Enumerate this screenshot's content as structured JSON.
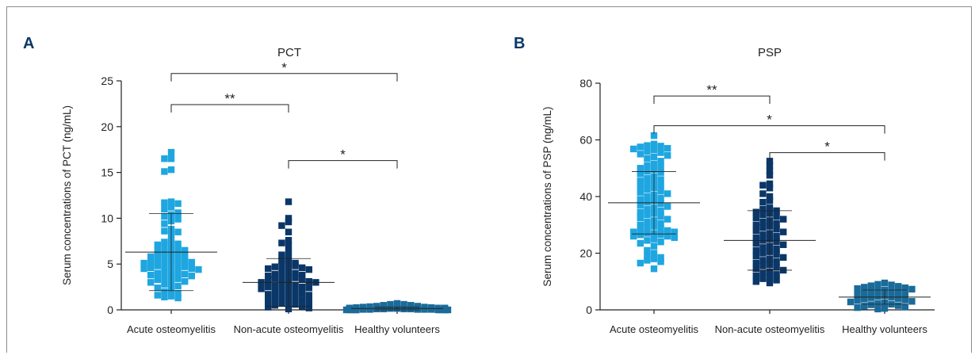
{
  "chart_data": [
    {
      "panel": "A",
      "type": "scatter",
      "title": "PCT",
      "ylabel": "Serum concentrations of PCT (ng/mL)",
      "xlabel": "",
      "ylim": [
        0,
        25
      ],
      "yticks": [
        0,
        5,
        10,
        15,
        20,
        25
      ],
      "categories": [
        "Acute osteomyelitis",
        "Non-acute osteomyelitis",
        "Healthy volunteers"
      ],
      "series": [
        {
          "category": "Acute osteomyelitis",
          "color": "#1fa6e0",
          "mean": 6.3,
          "sd": 4.2,
          "values": [
            17.2,
            16.5,
            16.5,
            15.1,
            15.3,
            11.8,
            11.7,
            11.6,
            11.2,
            11.0,
            10.6,
            10.4,
            10.2,
            9.9,
            9.7,
            9.4,
            8.8,
            8.6,
            8.5,
            8.2,
            7.6,
            7.4,
            7.2,
            7.0,
            7.1,
            6.9,
            6.6,
            6.5,
            6.5,
            6.3,
            6.2,
            6.1,
            6.0,
            5.9,
            5.8,
            5.7,
            5.6,
            5.5,
            5.4,
            5.3,
            5.2,
            5.2,
            5.1,
            5.0,
            4.9,
            4.8,
            4.8,
            4.7,
            4.6,
            4.5,
            4.5,
            4.4,
            4.3,
            4.2,
            4.1,
            4.0,
            3.9,
            3.8,
            3.7,
            3.6,
            3.5,
            3.4,
            3.3,
            3.1,
            3.0,
            2.9,
            2.8,
            2.6,
            2.4,
            2.2,
            2.0,
            1.8,
            1.6,
            1.5,
            1.4,
            1.3
          ]
        },
        {
          "category": "Non-acute osteomyelitis",
          "color": "#0b3768",
          "mean": 3.0,
          "sd": 2.6,
          "values": [
            11.8,
            10.0,
            9.6,
            9.2,
            8.5,
            7.6,
            7.3,
            7.0,
            6.3,
            6.0,
            5.6,
            5.4,
            5.1,
            5.0,
            4.9,
            4.8,
            4.7,
            4.6,
            4.5,
            4.4,
            4.3,
            4.2,
            4.0,
            3.9,
            3.8,
            3.7,
            3.6,
            3.5,
            3.5,
            3.4,
            3.3,
            3.2,
            3.1,
            3.0,
            3.0,
            2.9,
            2.8,
            2.7,
            2.6,
            2.5,
            2.5,
            2.4,
            2.3,
            2.2,
            2.1,
            2.0,
            1.9,
            1.8,
            1.7,
            1.6,
            1.5,
            1.4,
            1.3,
            1.2,
            1.1,
            1.0,
            0.9,
            0.8,
            0.7,
            0.6,
            0.5,
            0.4,
            0.3,
            0.2,
            0.1
          ]
        },
        {
          "category": "Healthy volunteers",
          "color": "#1a6b9a",
          "mean": 0.15,
          "sd": 0.15,
          "values": [
            0.7,
            0.6,
            0.6,
            0.5,
            0.5,
            0.4,
            0.4,
            0.35,
            0.3,
            0.3,
            0.25,
            0.25,
            0.2,
            0.2,
            0.2,
            0.15,
            0.15,
            0.1,
            0.1,
            0.1,
            0.1,
            0.05,
            0.05,
            0.05,
            0.05,
            0.05,
            0.0,
            0.0,
            0.0,
            0.0,
            0.0,
            0.0,
            0.0,
            0.0,
            0.0,
            0.0
          ]
        }
      ],
      "significance": [
        {
          "from": 0,
          "to": 2,
          "y": 25.8,
          "label": "*"
        },
        {
          "from": 0,
          "to": 1,
          "y": 22.4,
          "label": "**"
        },
        {
          "from": 1,
          "to": 2,
          "y": 16.3,
          "label": "*"
        }
      ]
    },
    {
      "panel": "B",
      "type": "scatter",
      "title": "PSP",
      "ylabel": "Serum concentrations of PSP (ng/mL)",
      "xlabel": "",
      "ylim": [
        0,
        80
      ],
      "yticks": [
        0,
        20,
        40,
        60,
        80
      ],
      "categories": [
        "Acute osteomyelitis",
        "Non-acute osteomyelitis",
        "Healthy volunteers"
      ],
      "series": [
        {
          "category": "Acute osteomyelitis",
          "color": "#1fa6e0",
          "mean": 37.8,
          "sd": 11.0,
          "values": [
            61.5,
            58.5,
            58.0,
            57.8,
            57.5,
            57.0,
            56.8,
            56.5,
            56.0,
            55.5,
            55.0,
            54.5,
            54.0,
            53.5,
            52.5,
            51.5,
            51.0,
            50.5,
            50.0,
            49.5,
            49.0,
            48.5,
            48.0,
            47.0,
            46.5,
            46.0,
            45.5,
            45.0,
            44.5,
            44.0,
            43.5,
            43.0,
            42.5,
            42.0,
            41.5,
            41.0,
            40.5,
            40.0,
            39.5,
            39.0,
            38.5,
            38.0,
            37.5,
            37.0,
            36.5,
            36.0,
            35.5,
            35.0,
            34.5,
            34.0,
            33.5,
            33.0,
            32.5,
            32.0,
            31.5,
            31.0,
            30.5,
            30.0,
            29.5,
            29.0,
            28.5,
            28.0,
            28.0,
            27.5,
            27.5,
            27.0,
            27.0,
            26.5,
            26.5,
            26.0,
            26.0,
            25.5,
            25.0,
            24.5,
            24.0,
            23.5,
            22.5,
            21.0,
            20.0,
            19.0,
            18.5,
            18.0,
            17.5,
            17.0,
            16.5,
            14.5
          ]
        },
        {
          "category": "Non-acute osteomyelitis",
          "color": "#0b3768",
          "mean": 24.5,
          "sd": 10.5,
          "values": [
            52.5,
            51.0,
            49.0,
            47.5,
            44.5,
            44.0,
            43.0,
            41.0,
            40.0,
            38.5,
            38.0,
            36.0,
            35.5,
            35.0,
            34.5,
            34.0,
            33.5,
            33.0,
            32.5,
            32.0,
            31.5,
            31.0,
            30.5,
            30.0,
            29.5,
            29.0,
            28.5,
            28.0,
            27.5,
            27.0,
            26.5,
            26.0,
            25.5,
            25.0,
            24.5,
            24.0,
            23.5,
            23.0,
            22.5,
            22.0,
            21.5,
            21.0,
            20.5,
            20.0,
            19.5,
            19.0,
            18.5,
            18.0,
            17.5,
            17.0,
            16.5,
            16.0,
            15.5,
            15.0,
            14.5,
            14.0,
            13.5,
            13.0,
            12.5,
            12.0,
            11.5,
            11.0,
            10.5,
            10.0,
            9.5
          ]
        },
        {
          "category": "Healthy volunteers",
          "color": "#1a6b9a",
          "mean": 4.5,
          "sd": 2.5,
          "values": [
            9.5,
            9.0,
            8.8,
            8.5,
            8.3,
            8.0,
            7.8,
            7.5,
            7.3,
            7.0,
            6.8,
            6.5,
            6.3,
            6.0,
            5.8,
            5.5,
            5.3,
            5.0,
            4.8,
            4.5,
            4.3,
            4.0,
            3.8,
            3.5,
            3.3,
            3.0,
            2.8,
            2.5,
            2.3,
            2.0,
            1.8,
            1.5,
            1.3,
            1.0,
            0.8,
            0.5,
            0.3
          ]
        }
      ],
      "significance": [
        {
          "from": 0,
          "to": 1,
          "y": 75.5,
          "label": "**"
        },
        {
          "from": 0,
          "to": 2,
          "y": 65.0,
          "label": "*"
        },
        {
          "from": 1,
          "to": 2,
          "y": 55.5,
          "label": "*"
        }
      ]
    }
  ]
}
